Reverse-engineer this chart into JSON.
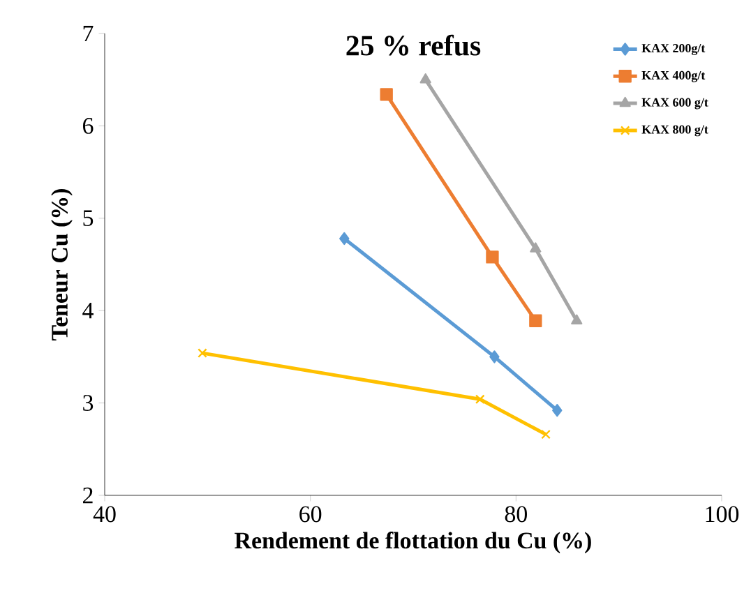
{
  "chart_data": {
    "type": "line",
    "title": "25 % refus",
    "xlabel": "Rendement de flottation du Cu (%)",
    "ylabel": "Teneur Cu (%)",
    "xlim": [
      40,
      100
    ],
    "xticks": [
      40,
      60,
      80,
      100
    ],
    "ylim": [
      2,
      7
    ],
    "yticks": [
      2,
      3,
      4,
      5,
      6,
      7
    ],
    "legend": "top right",
    "grid": false,
    "series": [
      {
        "name": "KAX 200g/t",
        "color": "#5b9bd5",
        "marker": "diamond",
        "x": [
          63.3,
          77.9,
          84.0
        ],
        "values": [
          4.78,
          3.5,
          2.92
        ]
      },
      {
        "name": "KAX 400g/t",
        "color": "#ed7d31",
        "marker": "square",
        "x": [
          67.4,
          77.7,
          81.9
        ],
        "values": [
          6.34,
          4.58,
          3.89
        ]
      },
      {
        "name": "KAX 600 g/t",
        "color": "#a5a5a5",
        "marker": "triangle",
        "x": [
          71.2,
          81.9,
          85.9
        ],
        "values": [
          6.5,
          4.67,
          3.89
        ]
      },
      {
        "name": "KAX 800 g/t",
        "color": "#ffc000",
        "marker": "cross",
        "x": [
          49.5,
          76.5,
          82.9
        ],
        "values": [
          3.54,
          3.04,
          2.66
        ]
      }
    ]
  }
}
